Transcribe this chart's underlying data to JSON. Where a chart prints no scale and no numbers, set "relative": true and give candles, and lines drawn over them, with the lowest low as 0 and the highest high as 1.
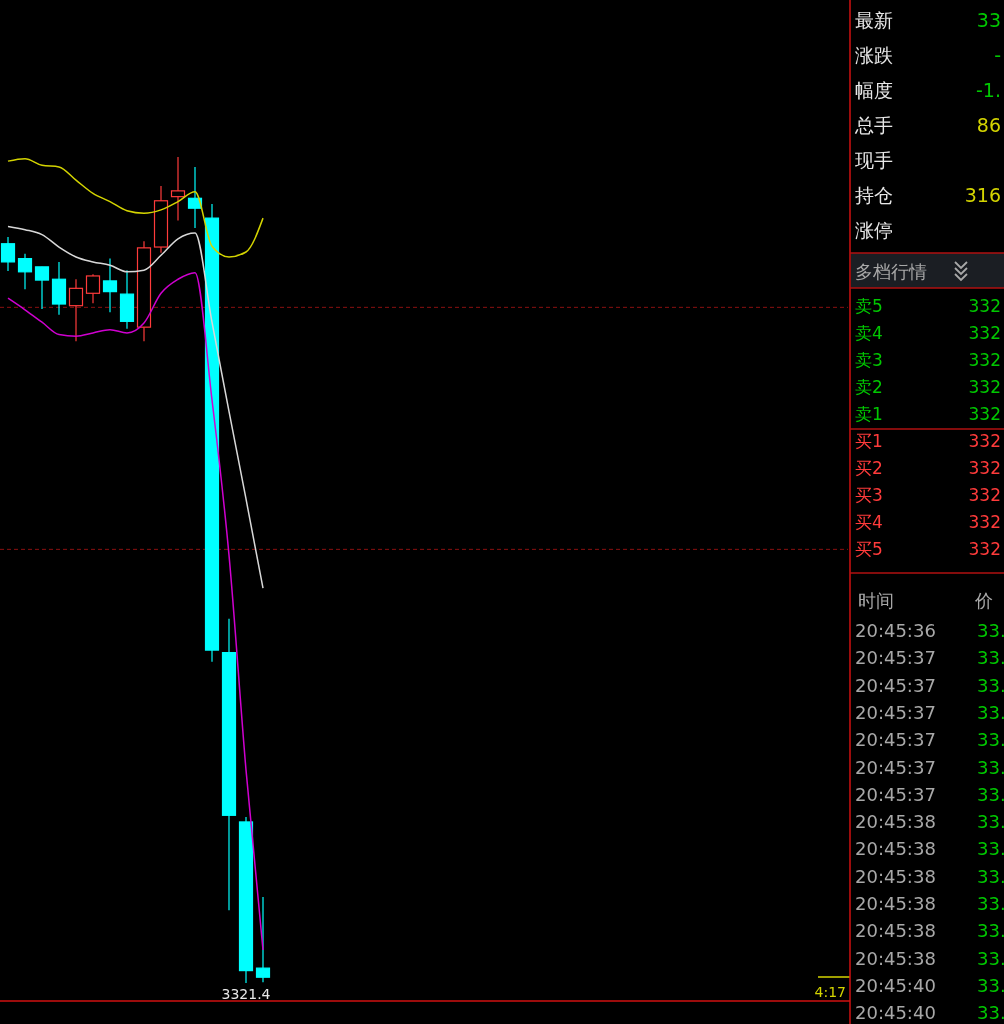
{
  "chart_data": [
    {
      "type": "candlestick",
      "relative": true,
      "categories": [
        null,
        null,
        null,
        null,
        null,
        null,
        null,
        null,
        null,
        null,
        null,
        null,
        null,
        null,
        null,
        null
      ],
      "ohlc": [
        [
          0.895,
          0.903,
          0.862,
          0.873
        ],
        [
          0.877,
          0.883,
          0.84,
          0.861
        ],
        [
          0.867,
          0.867,
          0.816,
          0.851
        ],
        [
          0.852,
          0.873,
          0.809,
          0.822
        ],
        [
          0.82,
          0.852,
          0.777,
          0.841
        ],
        [
          0.835,
          0.858,
          0.823,
          0.856
        ],
        [
          0.85,
          0.877,
          0.812,
          0.837
        ],
        [
          0.834,
          0.863,
          0.792,
          0.801
        ],
        [
          0.794,
          0.898,
          0.777,
          0.89
        ],
        [
          0.891,
          0.965,
          0.884,
          0.947
        ],
        [
          0.952,
          1,
          0.923,
          0.959
        ],
        [
          0.95,
          0.988,
          0.914,
          0.938
        ],
        [
          0.926,
          0.943,
          0.389,
          0.403
        ],
        [
          0.4,
          0.441,
          0.088,
          0.203
        ],
        [
          0.195,
          0.201,
          0,
          0.015
        ],
        [
          0.018,
          0.104,
          0.001,
          0.007
        ]
      ],
      "colors": [
        "#00ffff",
        "#00ffff",
        "#00ffff",
        "#00ffff",
        "#ff3b3b",
        "#ff3b3b",
        "#00ffff",
        "#00ffff",
        "#ff3b3b",
        "#ff3b3b",
        "#ff3b3b",
        "#00ffff",
        "#00ffff",
        "#00ffff",
        "#00ffff",
        "#00ffff"
      ],
      "series": [
        {
          "type": "line",
          "color": "#d4d400",
          "values": [
            0.995,
            0.998,
            0.99,
            0.988,
            0.972,
            0.956,
            0.946,
            0.935,
            0.932,
            0.936,
            0.946,
            0.958,
            0.892,
            0.879,
            0.885,
            0.926
          ]
        },
        {
          "type": "line",
          "color": "#d8d8d8",
          "values": [
            0.916,
            0.912,
            0.906,
            0.891,
            0.879,
            0.873,
            0.869,
            0.861,
            0.863,
            0.881,
            0.901,
            0.908,
            0.8,
            0.692,
            0.586,
            0.478
          ]
        },
        {
          "type": "line",
          "color": "#d000d0",
          "values": [
            0.829,
            0.815,
            0.8,
            0.785,
            0.783,
            0.787,
            0.791,
            0.787,
            0.799,
            0.835,
            0.852,
            0.86,
            0.706,
            0.518,
            0.258,
            0.04
          ]
        }
      ],
      "ref_lines": [
        {
          "axis": "y",
          "value": 0.818,
          "color": "#8b1010",
          "line_style": "dashed"
        },
        {
          "axis": "y",
          "value": 0.525,
          "color": "#8b1010",
          "line_style": "dashed"
        }
      ],
      "annotations": [
        {
          "text": "3321.4",
          "y": 0
        },
        "4:17"
      ]
    },
    {
      "type": "other",
      "title": "多档行情",
      "annotations": [
        "最新",
        "33",
        "涨跌",
        "-",
        "幅度",
        "-1.",
        "总手",
        "86",
        "现手",
        "持仓",
        "316",
        "涨停",
        "卖5",
        "332",
        "卖4",
        "332",
        "卖3",
        "332",
        "卖2",
        "332",
        "卖1",
        "332",
        "买1",
        "332",
        "买2",
        "332",
        "买3",
        "332",
        "买4",
        "332",
        "买5",
        "332",
        "时间",
        "价",
        "20:45:36",
        "33.",
        "20:45:37",
        "33.",
        "20:45:37",
        "33.",
        "20:45:37",
        "33.",
        "20:45:37",
        "33.",
        "20:45:37",
        "33.",
        "20:45:37",
        "33.",
        "20:45:38",
        "33.",
        "20:45:38",
        "33.",
        "20:45:38",
        "33.",
        "20:45:38",
        "33.",
        "20:45:38",
        "33.",
        "20:45:38",
        "33.",
        "20:45:40",
        "33.",
        "20:45:40",
        "33."
      ]
    }
  ]
}
